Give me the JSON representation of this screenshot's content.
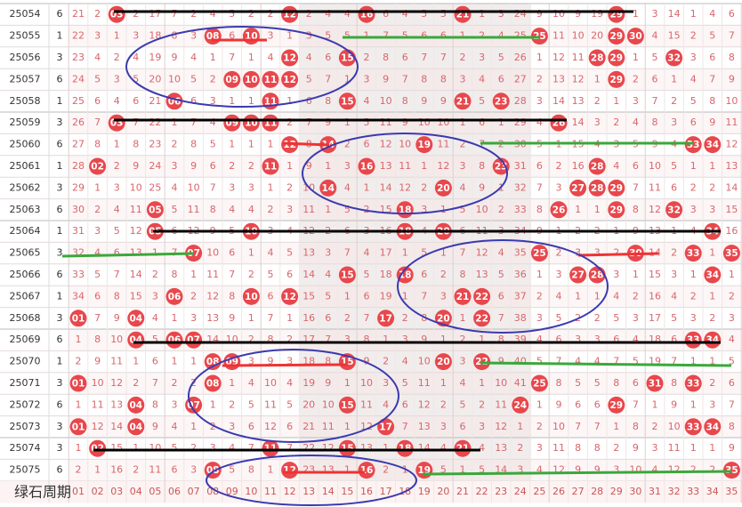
{
  "rows": [
    {
      "period": "25054",
      "n": 6,
      "cells": [
        21,
        2,
        "03",
        2,
        17,
        7,
        2,
        4,
        5,
        2,
        2,
        "12",
        2,
        4,
        4,
        "16",
        6,
        4,
        5,
        5,
        "21",
        1,
        3,
        24,
        9,
        10,
        9,
        19,
        "29",
        1,
        3,
        14,
        1,
        4,
        6
      ]
    },
    {
      "period": "25055",
      "n": 1,
      "cells": [
        22,
        3,
        1,
        3,
        18,
        8,
        3,
        "08",
        6,
        "10",
        3,
        1,
        3,
        5,
        5,
        1,
        7,
        5,
        6,
        6,
        1,
        2,
        4,
        25,
        "25",
        11,
        10,
        20,
        "29",
        "30",
        4,
        15,
        2,
        5,
        7
      ]
    },
    {
      "period": "25056",
      "n": 3,
      "cells": [
        23,
        4,
        2,
        4,
        19,
        9,
        4,
        1,
        7,
        1,
        4,
        "12",
        4,
        6,
        "15",
        2,
        8,
        6,
        7,
        7,
        2,
        3,
        5,
        26,
        1,
        12,
        11,
        "28",
        "29",
        1,
        5,
        "32",
        3,
        6,
        8
      ]
    },
    {
      "period": "25057",
      "n": 6,
      "cells": [
        24,
        5,
        3,
        5,
        20,
        10,
        5,
        2,
        "09",
        "10",
        "11",
        "12",
        5,
        7,
        1,
        3,
        9,
        7,
        8,
        8,
        3,
        4,
        6,
        27,
        2,
        13,
        12,
        1,
        "29",
        2,
        6,
        1,
        4,
        7,
        9
      ]
    },
    {
      "period": "25058",
      "n": 1,
      "cells": [
        25,
        6,
        4,
        6,
        21,
        "06",
        6,
        3,
        1,
        1,
        "11",
        1,
        6,
        8,
        "15",
        4,
        10,
        8,
        9,
        9,
        "21",
        5,
        "23",
        28,
        3,
        14,
        13,
        2,
        1,
        3,
        7,
        2,
        5,
        8,
        10
      ]
    },
    {
      "period": "25059",
      "n": 3,
      "cells": [
        26,
        7,
        "03",
        7,
        22,
        1,
        7,
        4,
        "09",
        "10",
        "11",
        2,
        7,
        9,
        1,
        5,
        11,
        9,
        10,
        10,
        1,
        6,
        1,
        29,
        4,
        "26",
        14,
        3,
        2,
        4,
        8,
        3,
        6,
        9,
        11
      ]
    },
    {
      "period": "25060",
      "n": 6,
      "cells": [
        27,
        8,
        1,
        8,
        23,
        2,
        8,
        5,
        1,
        1,
        1,
        "12",
        8,
        "14",
        2,
        6,
        12,
        10,
        "19",
        11,
        2,
        7,
        2,
        30,
        5,
        1,
        15,
        4,
        3,
        5,
        9,
        4,
        "33",
        "34",
        12
      ]
    },
    {
      "period": "25061",
      "n": 1,
      "cells": [
        28,
        "02",
        2,
        9,
        24,
        3,
        9,
        6,
        2,
        2,
        "11",
        1,
        9,
        1,
        3,
        "16",
        13,
        11,
        1,
        12,
        3,
        8,
        "23",
        31,
        6,
        2,
        16,
        "28",
        4,
        6,
        10,
        5,
        1,
        1,
        13
      ]
    },
    {
      "period": "25062",
      "n": 3,
      "cells": [
        29,
        1,
        3,
        10,
        25,
        4,
        10,
        7,
        3,
        3,
        1,
        2,
        10,
        "14",
        4,
        1,
        14,
        12,
        2,
        "20",
        4,
        9,
        1,
        32,
        7,
        3,
        "27",
        "28",
        "29",
        7,
        11,
        6,
        2,
        2,
        14
      ]
    },
    {
      "period": "25063",
      "n": 6,
      "cells": [
        30,
        2,
        4,
        11,
        "05",
        5,
        11,
        8,
        4,
        4,
        2,
        3,
        11,
        1,
        5,
        2,
        15,
        "18",
        3,
        1,
        5,
        10,
        2,
        33,
        8,
        "26",
        1,
        1,
        "29",
        8,
        12,
        "32",
        3,
        3,
        15
      ]
    },
    {
      "period": "25064",
      "n": 1,
      "cells": [
        31,
        3,
        5,
        12,
        "05",
        6,
        12,
        9,
        5,
        "10",
        3,
        4,
        12,
        2,
        6,
        3,
        16,
        "18",
        4,
        "20",
        6,
        11,
        3,
        34,
        9,
        1,
        2,
        2,
        1,
        9,
        13,
        1,
        4,
        "34",
        16
      ]
    },
    {
      "period": "25065",
      "n": 3,
      "cells": [
        32,
        4,
        6,
        13,
        1,
        7,
        "07",
        10,
        6,
        1,
        4,
        5,
        13,
        3,
        7,
        4,
        17,
        1,
        5,
        1,
        7,
        12,
        4,
        35,
        "25",
        2,
        3,
        3,
        2,
        "30",
        14,
        2,
        "33",
        1,
        "35"
      ]
    },
    {
      "period": "25066",
      "n": 6,
      "cells": [
        33,
        5,
        7,
        14,
        2,
        8,
        1,
        11,
        7,
        2,
        5,
        6,
        14,
        4,
        "15",
        5,
        18,
        "18",
        6,
        2,
        8,
        13,
        5,
        36,
        1,
        3,
        "27",
        "28",
        3,
        1,
        15,
        3,
        1,
        "34",
        1
      ]
    },
    {
      "period": "25067",
      "n": 1,
      "cells": [
        34,
        6,
        8,
        15,
        3,
        "06",
        2,
        12,
        8,
        "10",
        6,
        "12",
        15,
        5,
        1,
        6,
        19,
        1,
        7,
        3,
        "21",
        "22",
        6,
        37,
        2,
        4,
        1,
        1,
        4,
        2,
        16,
        4,
        2,
        1,
        2
      ]
    },
    {
      "period": "25068",
      "n": 3,
      "cells": [
        "01",
        7,
        9,
        "04",
        4,
        1,
        3,
        13,
        9,
        1,
        7,
        1,
        16,
        6,
        2,
        7,
        "17",
        2,
        8,
        "20",
        1,
        "22",
        7,
        38,
        3,
        5,
        2,
        2,
        5,
        3,
        17,
        5,
        3,
        2,
        3
      ]
    },
    {
      "period": "25069",
      "n": 6,
      "cells": [
        1,
        8,
        10,
        "04",
        5,
        "06",
        "07",
        14,
        10,
        2,
        8,
        2,
        17,
        7,
        3,
        8,
        1,
        3,
        9,
        1,
        2,
        1,
        8,
        39,
        4,
        6,
        3,
        3,
        6,
        4,
        18,
        6,
        "33",
        "34",
        4
      ]
    },
    {
      "period": "25070",
      "n": 1,
      "cells": [
        2,
        9,
        11,
        1,
        6,
        1,
        1,
        "08",
        "09",
        3,
        9,
        3,
        18,
        8,
        "15",
        9,
        2,
        4,
        10,
        "20",
        3,
        "22",
        9,
        40,
        5,
        7,
        4,
        4,
        7,
        5,
        19,
        7,
        1,
        1,
        5
      ]
    },
    {
      "period": "25071",
      "n": 3,
      "cells": [
        "01",
        10,
        12,
        2,
        7,
        2,
        2,
        "08",
        1,
        4,
        10,
        4,
        19,
        9,
        1,
        10,
        3,
        5,
        11,
        1,
        4,
        1,
        10,
        41,
        "25",
        8,
        5,
        5,
        8,
        6,
        "31",
        8,
        "33",
        2,
        6
      ]
    },
    {
      "period": "25072",
      "n": 6,
      "cells": [
        1,
        11,
        13,
        "04",
        8,
        3,
        "07",
        1,
        2,
        5,
        11,
        5,
        20,
        10,
        "15",
        11,
        4,
        6,
        12,
        2,
        5,
        2,
        11,
        "24",
        1,
        9,
        6,
        6,
        "29",
        7,
        1,
        9,
        1,
        3,
        7
      ]
    },
    {
      "period": "25073",
      "n": 3,
      "cells": [
        "01",
        12,
        14,
        "04",
        9,
        4,
        1,
        2,
        3,
        6,
        12,
        6,
        21,
        11,
        1,
        12,
        "17",
        7,
        13,
        3,
        6,
        3,
        12,
        1,
        2,
        10,
        7,
        7,
        1,
        8,
        2,
        10,
        "33",
        "34",
        8
      ]
    },
    {
      "period": "25074",
      "n": 3,
      "cells": [
        1,
        "02",
        15,
        1,
        10,
        5,
        2,
        3,
        4,
        7,
        "11",
        7,
        22,
        12,
        "15",
        13,
        1,
        "18",
        14,
        4,
        "21",
        4,
        13,
        2,
        3,
        11,
        8,
        8,
        2,
        9,
        3,
        11,
        1,
        1,
        9
      ]
    },
    {
      "period": "25075",
      "n": 6,
      "cells": [
        2,
        1,
        16,
        2,
        11,
        6,
        3,
        "08",
        5,
        8,
        1,
        "12",
        23,
        13,
        1,
        "16",
        2,
        1,
        "19",
        5,
        1,
        5,
        14,
        3,
        4,
        12,
        9,
        9,
        3,
        10,
        4,
        12,
        2,
        2,
        "35"
      ]
    }
  ],
  "footer": {
    "label": "绿石周期",
    "cols": [
      "01",
      "02",
      "03",
      "04",
      "05",
      "06",
      "07",
      "08",
      "09",
      "10",
      "11",
      "12",
      "13",
      "14",
      "15",
      "16",
      "17",
      "18",
      "19",
      "20",
      "21",
      "22",
      "23",
      "24",
      "25",
      "26",
      "27",
      "28",
      "29",
      "30",
      "31",
      "32",
      "33",
      "34",
      "35"
    ]
  }
}
